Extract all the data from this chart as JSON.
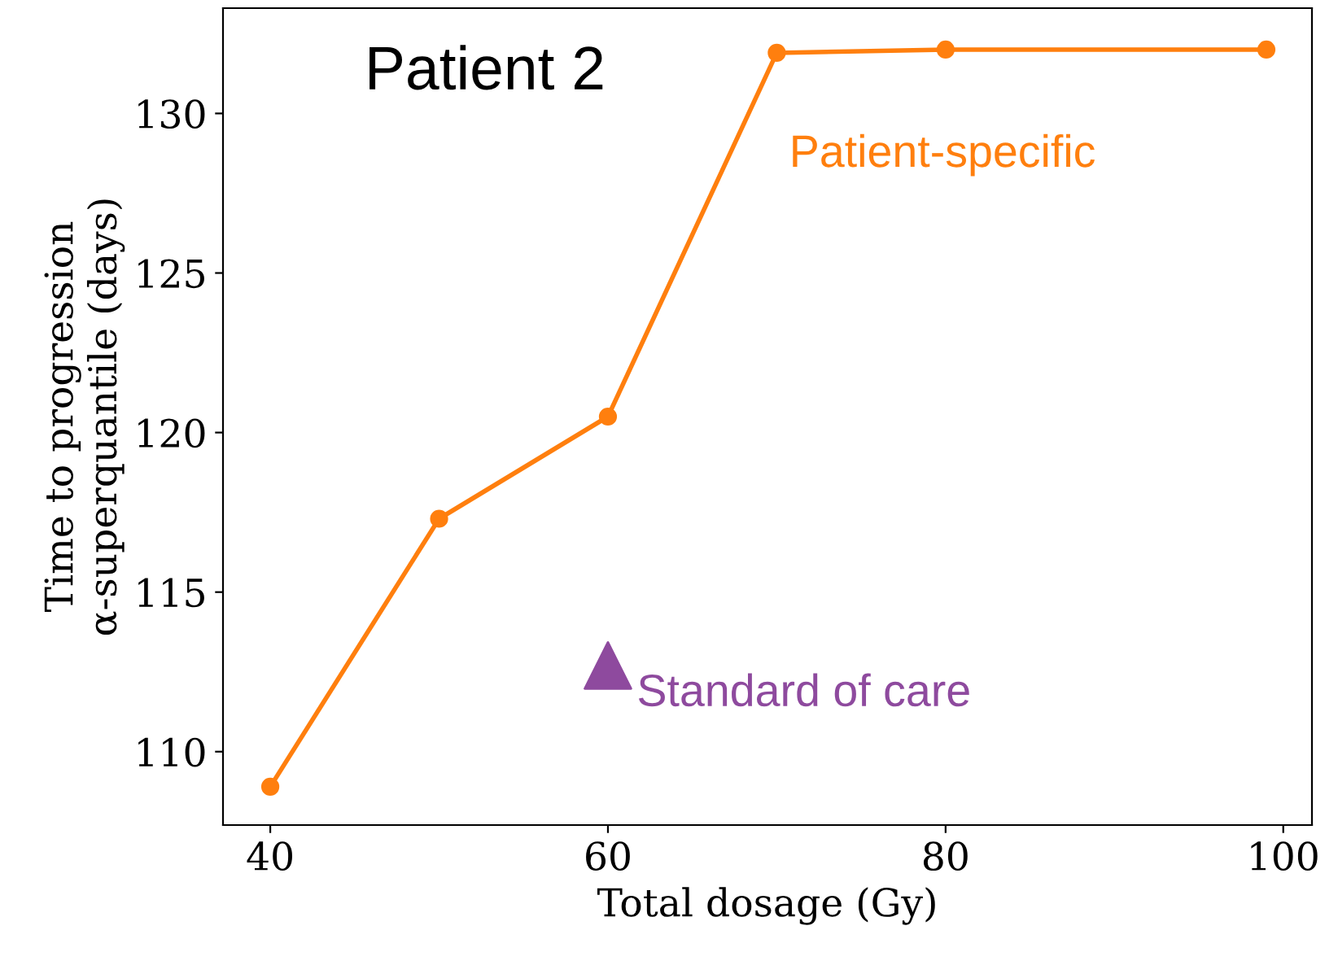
{
  "chart_data": {
    "type": "line",
    "title": "Patient 2",
    "xlabel": "Total dosage (Gy)",
    "ylabel": "Time to progression\nα-superquantile (days)",
    "series": [
      {
        "name": "Patient-specific",
        "color": "#ff7f0e",
        "marker": "circle",
        "x": [
          40,
          50,
          60,
          70,
          80,
          99
        ],
        "values": [
          108.9,
          117.3,
          120.5,
          131.9,
          132.0,
          132.0
        ]
      },
      {
        "name": "Standard of care",
        "type": "scatter",
        "color": "#8e4a9e",
        "marker": "triangle",
        "x": [
          60
        ],
        "values": [
          112.7
        ]
      }
    ],
    "xlim": [
      37.2,
      101.7
    ],
    "ylim": [
      107.7,
      133.3
    ],
    "xticks": [
      40,
      60,
      80,
      100
    ],
    "yticks": [
      110,
      115,
      120,
      125,
      130
    ],
    "grid": false,
    "legend": false
  }
}
